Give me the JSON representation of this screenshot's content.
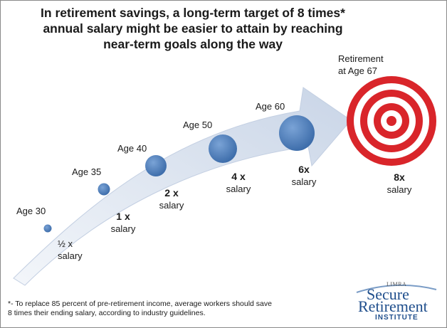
{
  "title": {
    "line1": "In retirement savings, a long-term target of 8 times*",
    "line2": "annual salary might be easier to attain by reaching",
    "line3": "near-term goals along the way"
  },
  "colors": {
    "arrow": "#d6dfec",
    "milestone": "#4f81bd",
    "target_red": "#d9252a",
    "logo_blue": "#1f4e8c"
  },
  "milestones": [
    {
      "age": "Age 30",
      "multiple": "½ x",
      "unit": "salary"
    },
    {
      "age": "Age 35",
      "multiple": "1 x",
      "unit": "salary"
    },
    {
      "age": "Age 40",
      "multiple": "2 x",
      "unit": "salary"
    },
    {
      "age": "Age 50",
      "multiple": "4 x",
      "unit": "salary"
    },
    {
      "age": "Age 60",
      "multiple": "6x",
      "unit": "salary"
    }
  ],
  "target": {
    "label_line1": "Retirement",
    "label_line2": "at Age 67",
    "multiple": "8x",
    "unit": "salary",
    "icon": "bullseye-icon"
  },
  "footnote": {
    "line1": "*- To replace 85 percent of pre-retirement income, average workers should save",
    "line2": "8 times their ending salary, according to industry guidelines."
  },
  "logo": {
    "top": "LIMRA",
    "word1": "Secure",
    "word2": "Retirement",
    "word3": "INSTITUTE"
  }
}
